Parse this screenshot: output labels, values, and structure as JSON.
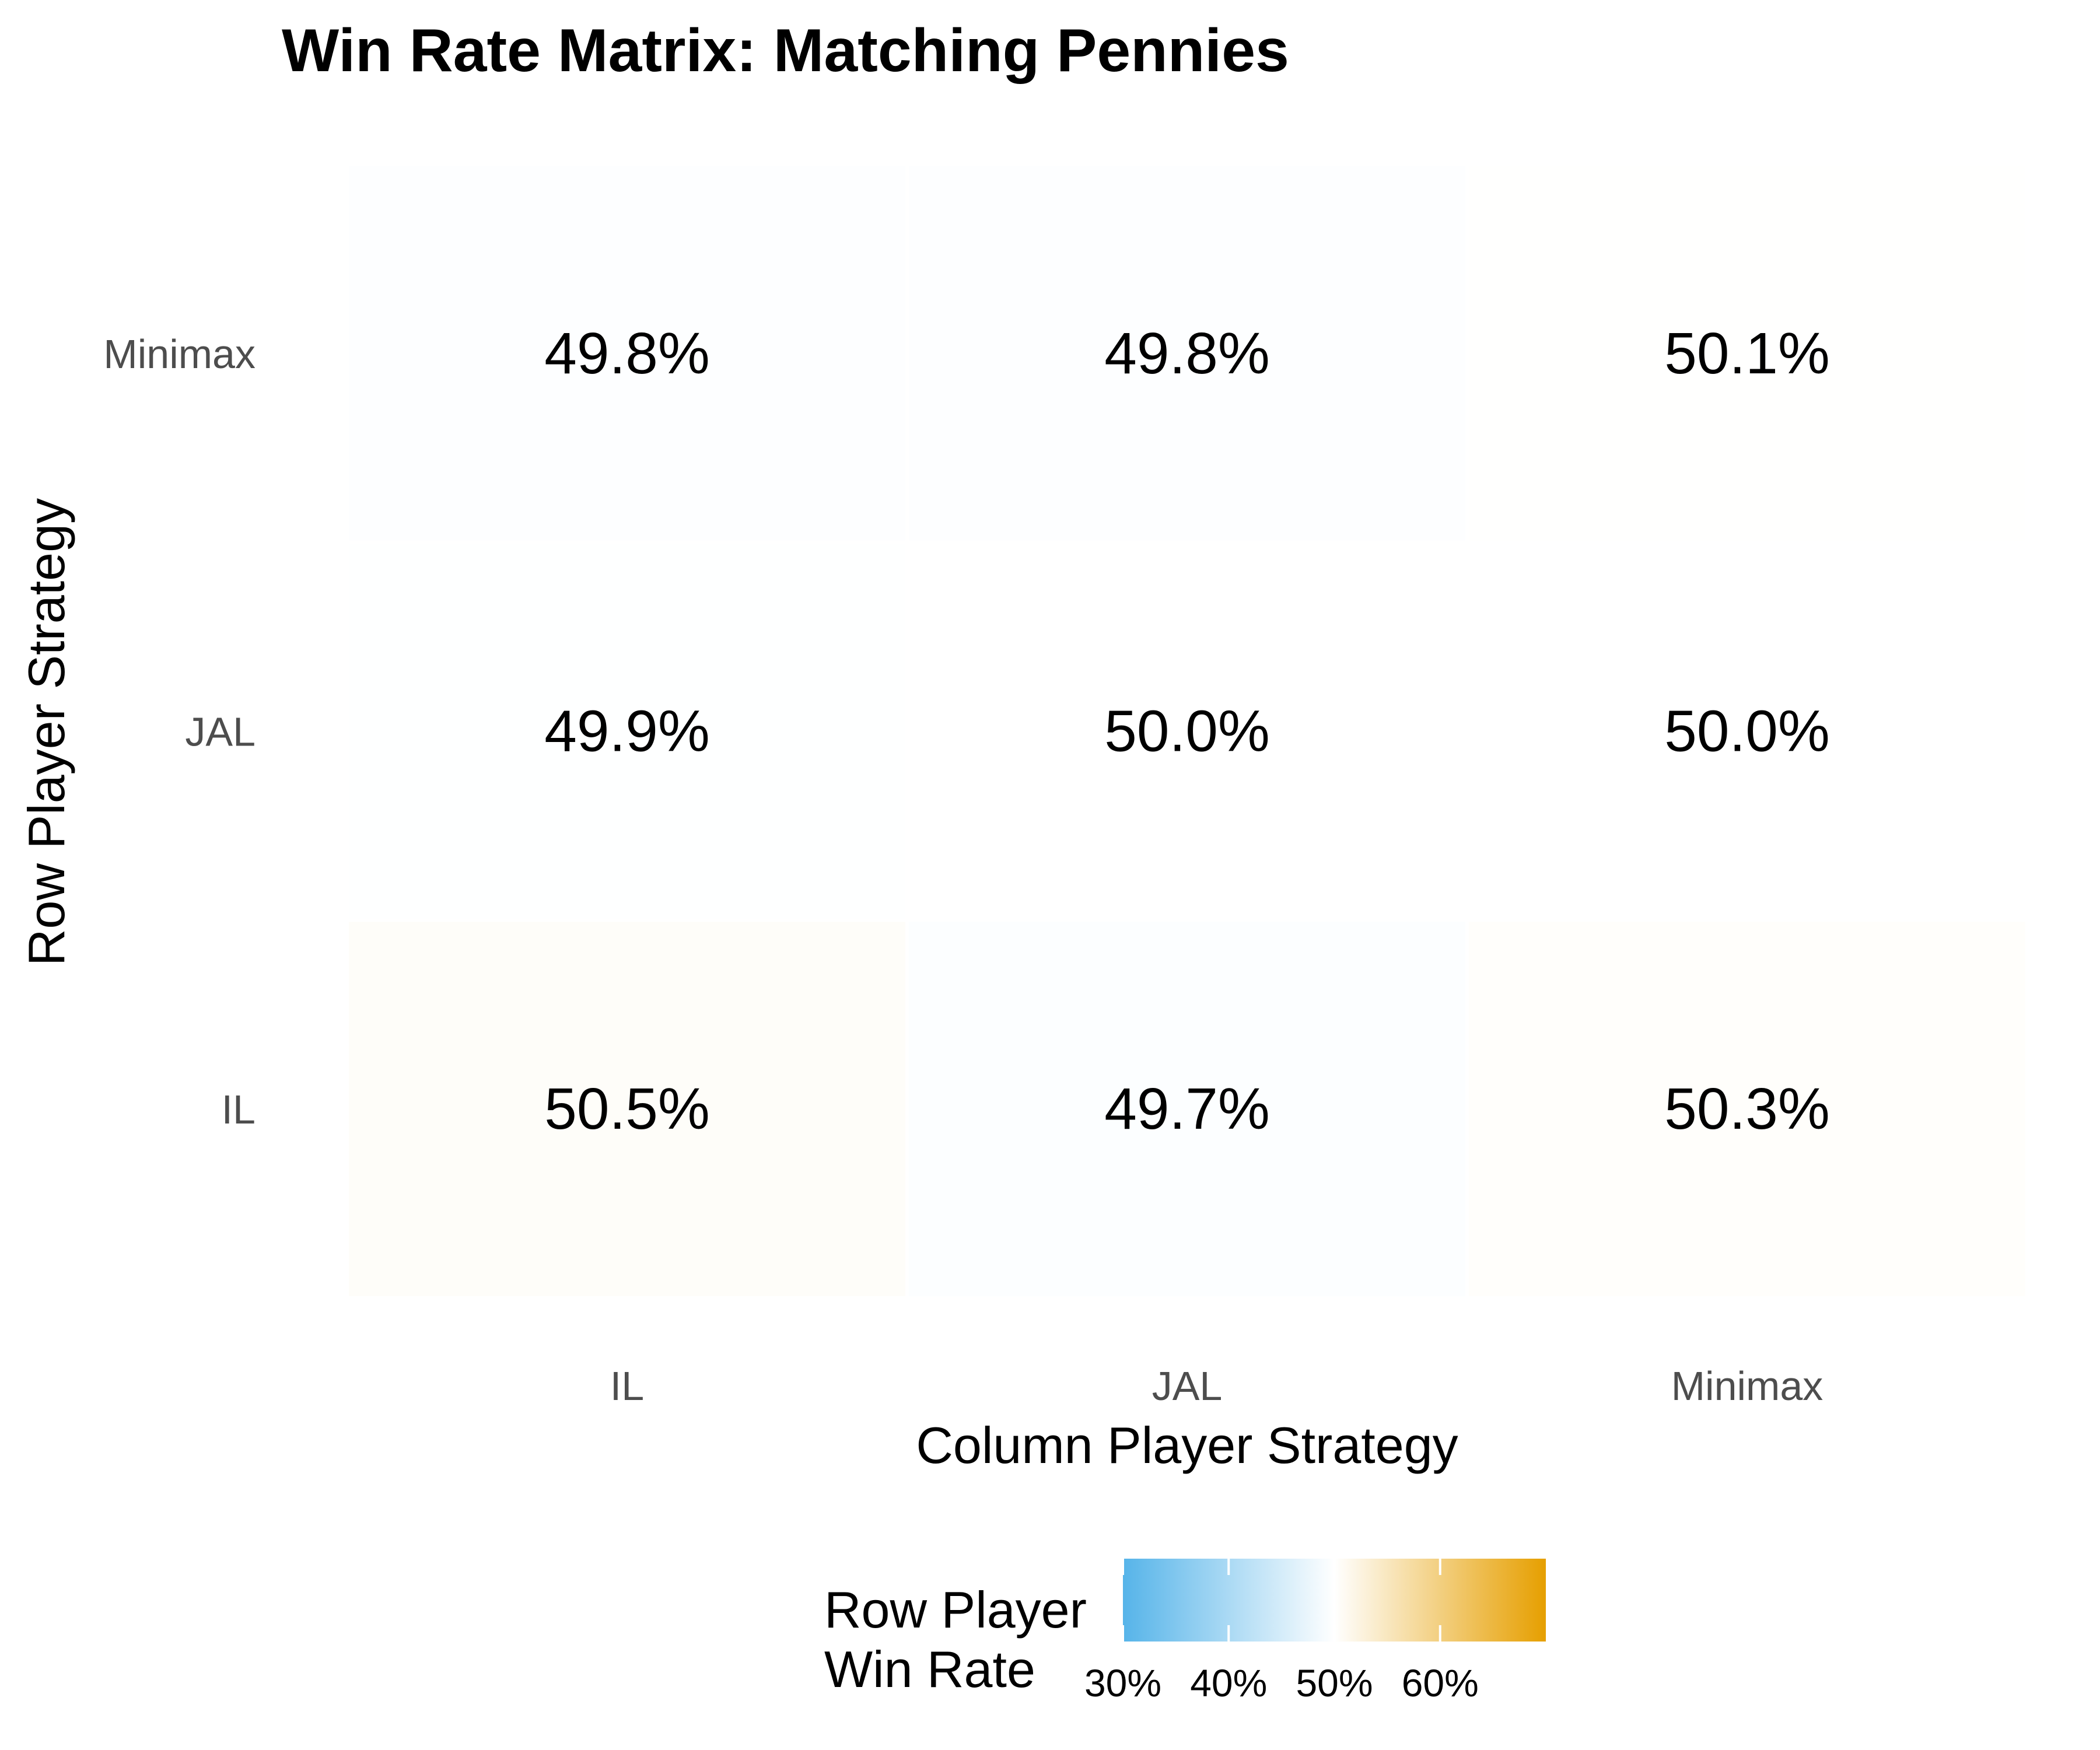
{
  "chart_data": {
    "type": "heatmap",
    "title": "Win Rate Matrix: Matching Pennies",
    "xlabel": "Column Player Strategy",
    "ylabel": "Row Player Strategy",
    "x_categories": [
      "IL",
      "JAL",
      "Minimax"
    ],
    "y_categories": [
      "IL",
      "JAL",
      "Minimax"
    ],
    "values": [
      {
        "row": "Minimax",
        "col": "IL",
        "value": 49.8,
        "label": "49.8%"
      },
      {
        "row": "Minimax",
        "col": "JAL",
        "value": 49.8,
        "label": "49.8%"
      },
      {
        "row": "Minimax",
        "col": "Minimax",
        "value": 50.1,
        "label": "50.1%"
      },
      {
        "row": "JAL",
        "col": "IL",
        "value": 49.9,
        "label": "49.9%"
      },
      {
        "row": "JAL",
        "col": "JAL",
        "value": 50.0,
        "label": "50.0%"
      },
      {
        "row": "JAL",
        "col": "Minimax",
        "value": 50.0,
        "label": "50.0%"
      },
      {
        "row": "IL",
        "col": "IL",
        "value": 50.5,
        "label": "50.5%"
      },
      {
        "row": "IL",
        "col": "JAL",
        "value": 49.7,
        "label": "49.7%"
      },
      {
        "row": "IL",
        "col": "Minimax",
        "value": 50.3,
        "label": "50.3%"
      }
    ],
    "color_scale": {
      "low": "#56B4E9",
      "mid": "#FFFFFF",
      "high": "#E69F00",
      "midpoint": 50,
      "limits": [
        30,
        70
      ]
    },
    "legend": {
      "title_line1": "Row Player",
      "title_line2": "Win Rate",
      "position": "bottom",
      "breaks": [
        30,
        40,
        50,
        60
      ],
      "break_labels": [
        "30%",
        "40%",
        "50%",
        "60%"
      ]
    },
    "grid": false
  }
}
